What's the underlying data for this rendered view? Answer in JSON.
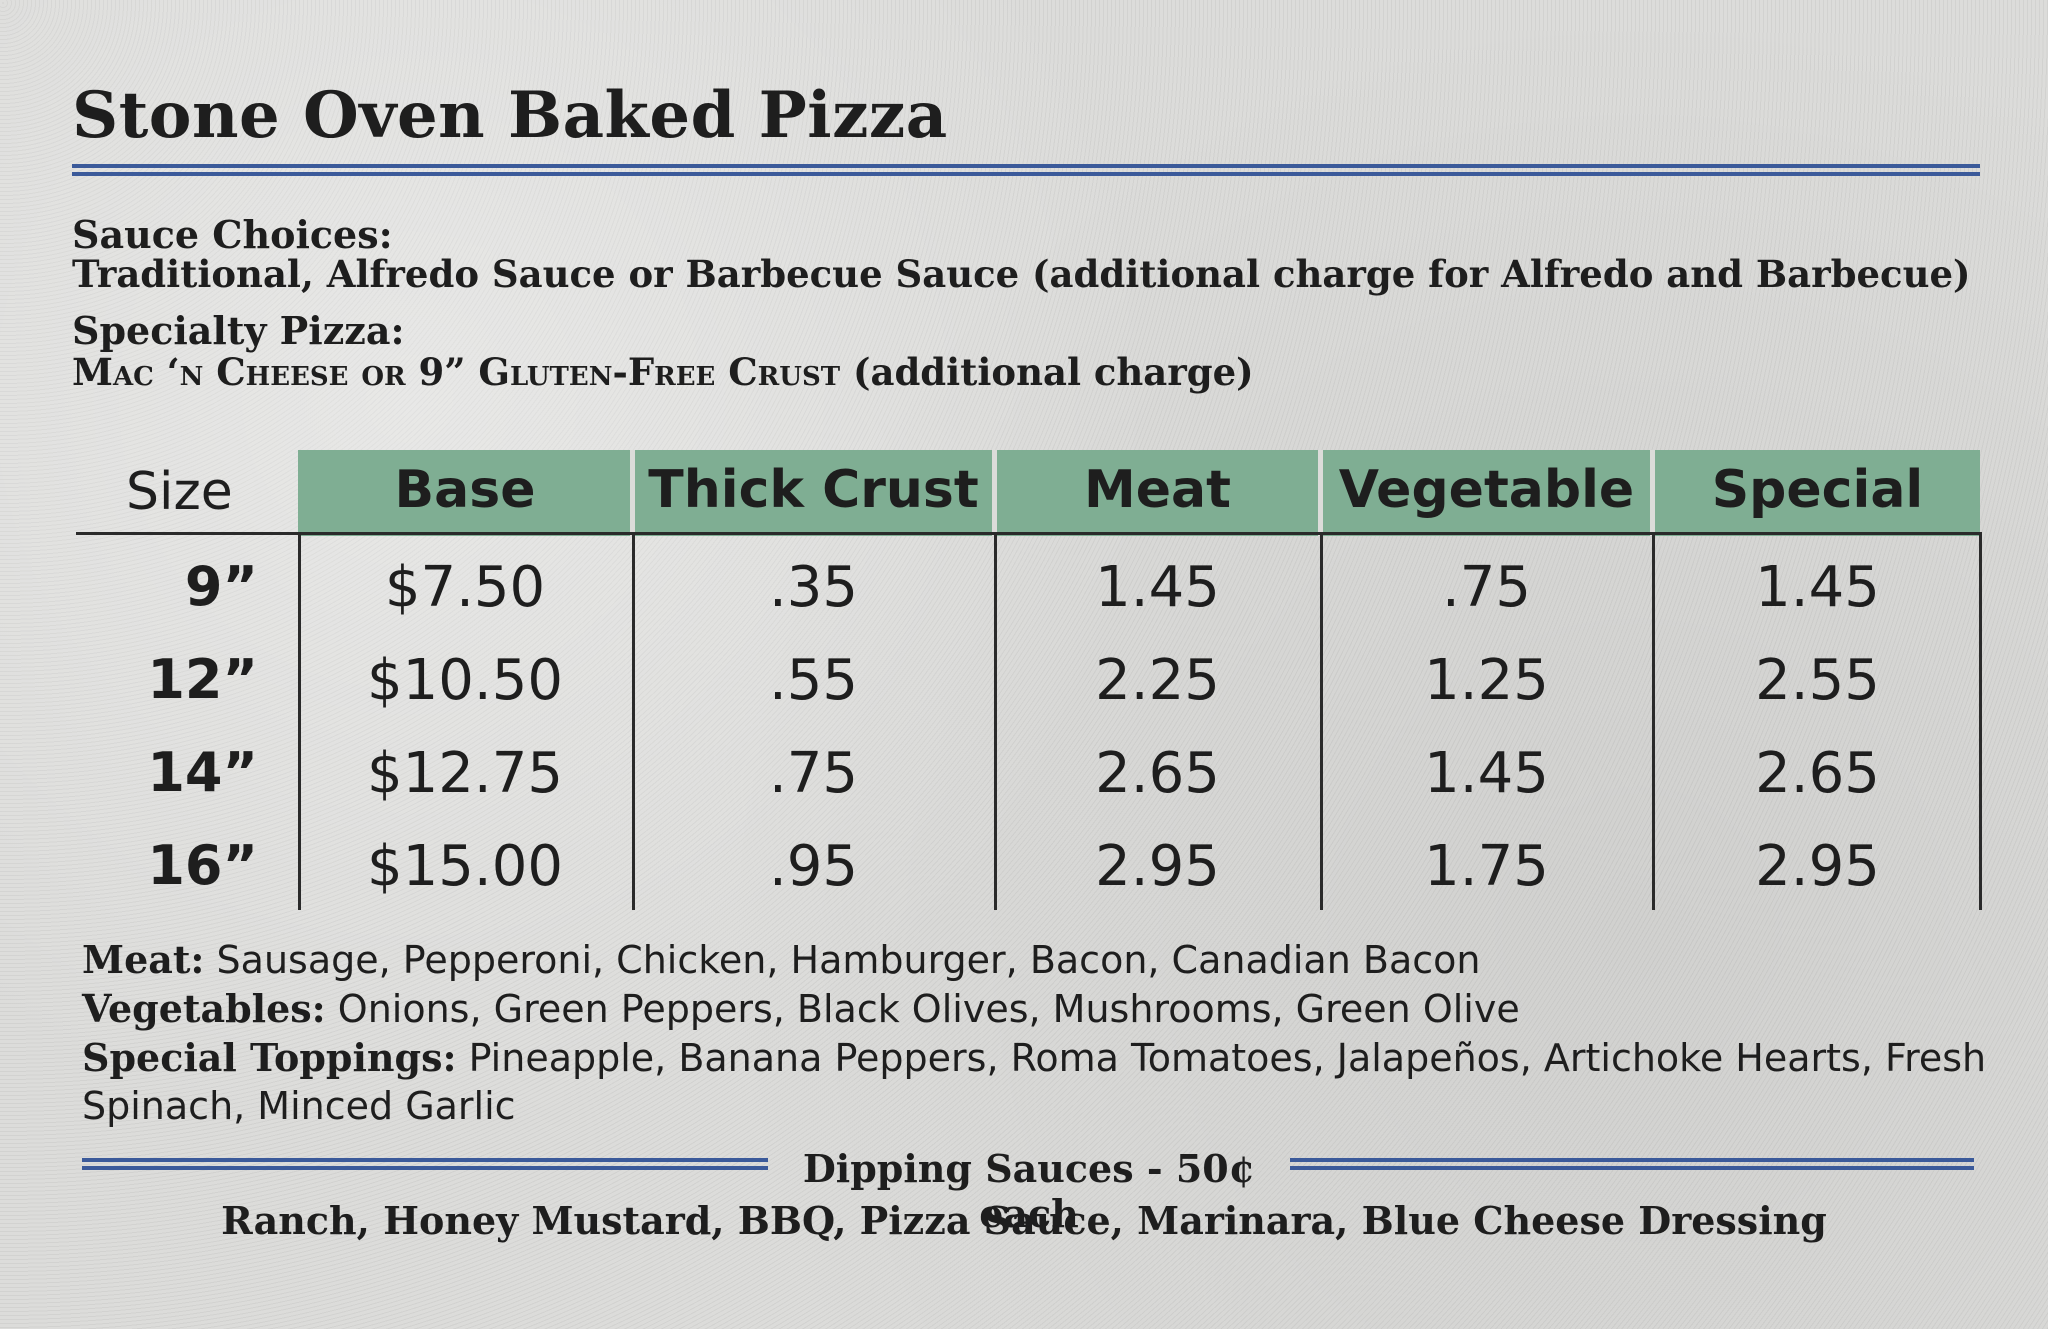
{
  "title": "Stone Oven Baked Pizza",
  "sauce": {
    "label": "Sauce Choices:",
    "text": "Traditional, Alfredo Sauce or Barbecue Sauce (additional charge for Alfredo and Barbecue)"
  },
  "specialty": {
    "label": "Specialty Pizza:",
    "smallcaps_text": "Mac ‘n Cheese or 9” Gluten-Free Crust",
    "suffix": " (additional charge)"
  },
  "table": {
    "size_header": "Size",
    "headers": [
      "Base",
      "Thick Crust",
      "Meat",
      "Vegetable",
      "Special"
    ],
    "rows": [
      {
        "size": "9”",
        "cells": [
          "$7.50",
          ".35",
          "1.45",
          ".75",
          "1.45"
        ]
      },
      {
        "size": "12”",
        "cells": [
          "$10.50",
          ".55",
          "2.25",
          "1.25",
          "2.55"
        ]
      },
      {
        "size": "14”",
        "cells": [
          "$12.75",
          ".75",
          "2.65",
          "1.45",
          "2.65"
        ]
      },
      {
        "size": "16”",
        "cells": [
          "$15.00",
          ".95",
          "2.95",
          "1.75",
          "2.95"
        ]
      }
    ],
    "header_color": "#7fae93"
  },
  "toppings": {
    "meat_label": "Meat:",
    "meat": " Sausage, Pepperoni, Chicken, Hamburger, Bacon, Canadian Bacon",
    "veg_label": "Vegetables:",
    "veg": " Onions, Green Peppers, Black Olives, Mushrooms, Green Olive",
    "special_label": "Special Toppings:",
    "special_line1": " Pineapple, Banana Peppers, Roma Tomatoes, Jalapeños, Artichoke Hearts, Fresh",
    "special_line2": "Spinach, Minced Garlic"
  },
  "dipping": {
    "title": "Dipping Sauces - 50¢ each",
    "list": "Ranch, Honey Mustard, BBQ, Pizza Sauce, Marinara, Blue Cheese Dressing"
  },
  "rule_color": "#3b5a9a"
}
